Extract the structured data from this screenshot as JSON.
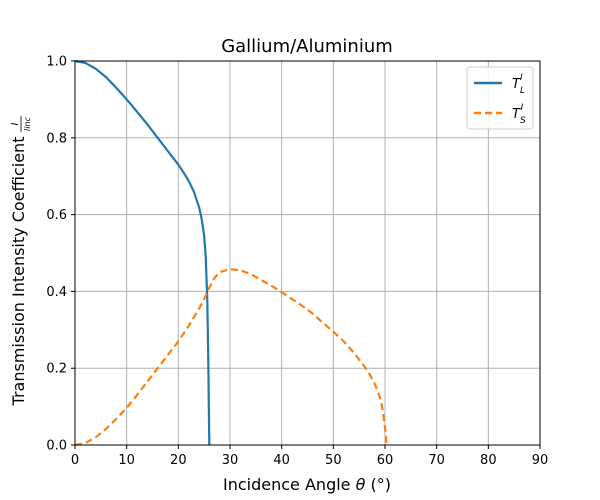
{
  "chart_data": {
    "type": "line",
    "title": "Gallium/Aluminium",
    "xlabel": "Incidence Angle θ (°)",
    "xlabel_prefix": "Incidence Angle ",
    "xlabel_symbol": "θ",
    "xlabel_suffix": " (°)",
    "ylabel": "Transmission Intensity Coefficient I/I_inc",
    "ylabel_text": "Transmission Intensity Coefficient",
    "ylabel_frac_num": "I",
    "ylabel_frac_den": "Iinc",
    "xlim": [
      0,
      90
    ],
    "ylim": [
      0,
      1.0
    ],
    "xticks": [
      "0",
      "10",
      "20",
      "30",
      "40",
      "50",
      "60",
      "70",
      "80",
      "90"
    ],
    "yticks": [
      "0.0",
      "0.2",
      "0.4",
      "0.6",
      "0.8",
      "1.0"
    ],
    "grid": true,
    "legend_position": "top-right",
    "series": [
      {
        "name": "T_L^I",
        "legend_main": "T",
        "legend_sub": "L",
        "legend_sup": "I",
        "color": "#1f77b4",
        "style": "solid",
        "x": [
          0,
          2,
          4,
          6,
          8,
          10,
          12,
          14,
          16,
          18,
          20,
          21,
          22,
          23,
          24,
          24.5,
          25,
          25.3,
          25.6,
          25.8,
          25.9,
          26.0
        ],
        "y": [
          1.0,
          0.995,
          0.98,
          0.958,
          0.93,
          0.9,
          0.868,
          0.835,
          0.8,
          0.765,
          0.73,
          0.71,
          0.688,
          0.66,
          0.62,
          0.59,
          0.545,
          0.49,
          0.38,
          0.22,
          0.1,
          0.0
        ]
      },
      {
        "name": "T_S^I",
        "legend_main": "T",
        "legend_sub": "S",
        "legend_sup": "I",
        "color": "#ff7f0e",
        "style": "dashed",
        "x": [
          0,
          2,
          4,
          6,
          8,
          10,
          12,
          14,
          16,
          18,
          20,
          22,
          24,
          25,
          26,
          27,
          28,
          30,
          32,
          34,
          36,
          38,
          40,
          42,
          44,
          46,
          48,
          50,
          52,
          54,
          56,
          57,
          58,
          59,
          59.5,
          60,
          60.3
        ],
        "y": [
          0.0,
          0.005,
          0.02,
          0.042,
          0.068,
          0.097,
          0.13,
          0.165,
          0.2,
          0.235,
          0.27,
          0.31,
          0.355,
          0.38,
          0.41,
          0.435,
          0.45,
          0.458,
          0.455,
          0.445,
          0.43,
          0.415,
          0.398,
          0.38,
          0.362,
          0.342,
          0.318,
          0.295,
          0.27,
          0.24,
          0.205,
          0.185,
          0.16,
          0.125,
          0.095,
          0.045,
          0.0
        ]
      }
    ]
  }
}
